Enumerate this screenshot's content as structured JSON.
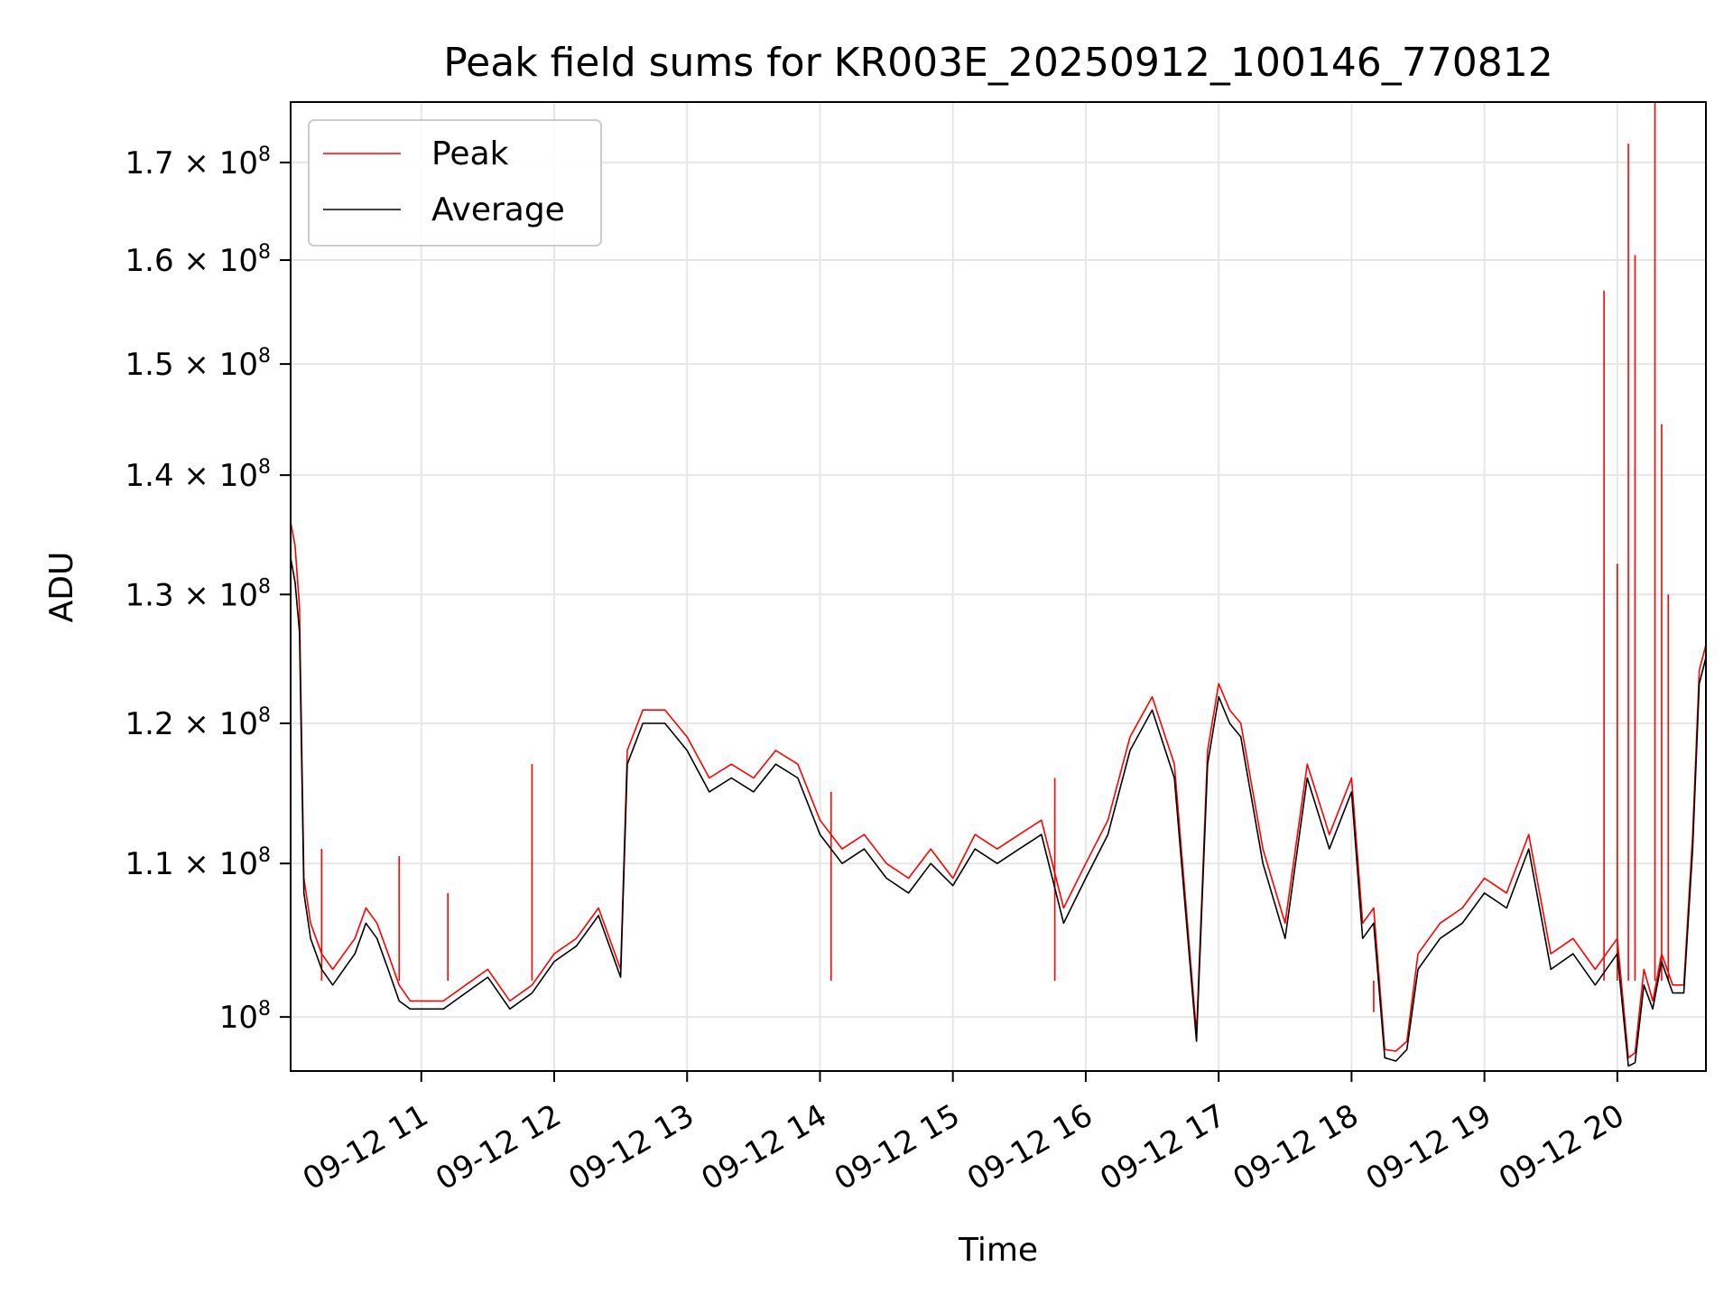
{
  "chart_data": {
    "type": "line",
    "title": "Peak field sums for KR003E_20250912_100146_770812",
    "xlabel": "Time",
    "ylabel": "ADU",
    "yscale": "log",
    "grid": true,
    "legend_position": "top-left",
    "xlim": [
      "2025-09-12 10:01",
      "2025-09-12 20:40"
    ],
    "ylim": [
      96700000,
      176500000
    ],
    "x_ticks": [
      {
        "value": "2025-09-12 11:00",
        "label": "09-12 11"
      },
      {
        "value": "2025-09-12 12:00",
        "label": "09-12 12"
      },
      {
        "value": "2025-09-12 13:00",
        "label": "09-12 13"
      },
      {
        "value": "2025-09-12 14:00",
        "label": "09-12 14"
      },
      {
        "value": "2025-09-12 15:00",
        "label": "09-12 15"
      },
      {
        "value": "2025-09-12 16:00",
        "label": "09-12 16"
      },
      {
        "value": "2025-09-12 17:00",
        "label": "09-12 17"
      },
      {
        "value": "2025-09-12 18:00",
        "label": "09-12 18"
      },
      {
        "value": "2025-09-12 19:00",
        "label": "09-12 19"
      },
      {
        "value": "2025-09-12 20:00",
        "label": "09-12 20"
      }
    ],
    "y_ticks": [
      {
        "value": 100000000,
        "mantissa": "",
        "exp": "8"
      },
      {
        "value": 110000000,
        "mantissa": "1.1",
        "exp": "8"
      },
      {
        "value": 120000000,
        "mantissa": "1.2",
        "exp": "8"
      },
      {
        "value": 130000000,
        "mantissa": "1.3",
        "exp": "8"
      },
      {
        "value": 140000000,
        "mantissa": "1.4",
        "exp": "8"
      },
      {
        "value": 150000000,
        "mantissa": "1.5",
        "exp": "8"
      },
      {
        "value": 160000000,
        "mantissa": "1.6",
        "exp": "8"
      },
      {
        "value": 170000000,
        "mantissa": "1.7",
        "exp": "8"
      }
    ],
    "series": [
      {
        "name": "Peak",
        "color": "#ff0000",
        "x": [
          "2025-09-12 10:01",
          "2025-09-12 10:03",
          "2025-09-12 10:05",
          "2025-09-12 10:07",
          "2025-09-12 10:10",
          "2025-09-12 10:15",
          "2025-09-12 10:20",
          "2025-09-12 10:25",
          "2025-09-12 10:30",
          "2025-09-12 10:35",
          "2025-09-12 10:40",
          "2025-09-12 10:45",
          "2025-09-12 10:50",
          "2025-09-12 10:55",
          "2025-09-12 11:00",
          "2025-09-12 11:10",
          "2025-09-12 11:20",
          "2025-09-12 11:30",
          "2025-09-12 11:40",
          "2025-09-12 11:50",
          "2025-09-12 12:00",
          "2025-09-12 12:10",
          "2025-09-12 12:20",
          "2025-09-12 12:30",
          "2025-09-12 12:33",
          "2025-09-12 12:40",
          "2025-09-12 12:50",
          "2025-09-12 13:00",
          "2025-09-12 13:10",
          "2025-09-12 13:20",
          "2025-09-12 13:30",
          "2025-09-12 13:40",
          "2025-09-12 13:50",
          "2025-09-12 14:00",
          "2025-09-12 14:10",
          "2025-09-12 14:20",
          "2025-09-12 14:30",
          "2025-09-12 14:40",
          "2025-09-12 14:50",
          "2025-09-12 15:00",
          "2025-09-12 15:10",
          "2025-09-12 15:20",
          "2025-09-12 15:30",
          "2025-09-12 15:40",
          "2025-09-12 15:50",
          "2025-09-12 16:00",
          "2025-09-12 16:10",
          "2025-09-12 16:20",
          "2025-09-12 16:30",
          "2025-09-12 16:40",
          "2025-09-12 16:50",
          "2025-09-12 16:55",
          "2025-09-12 17:00",
          "2025-09-12 17:05",
          "2025-09-12 17:10",
          "2025-09-12 17:20",
          "2025-09-12 17:30",
          "2025-09-12 17:40",
          "2025-09-12 17:50",
          "2025-09-12 18:00",
          "2025-09-12 18:05",
          "2025-09-12 18:10",
          "2025-09-12 18:15",
          "2025-09-12 18:20",
          "2025-09-12 18:25",
          "2025-09-12 18:30",
          "2025-09-12 18:40",
          "2025-09-12 18:50",
          "2025-09-12 19:00",
          "2025-09-12 19:10",
          "2025-09-12 19:20",
          "2025-09-12 19:30",
          "2025-09-12 19:40",
          "2025-09-12 19:50",
          "2025-09-12 19:55",
          "2025-09-12 20:00",
          "2025-09-12 20:05",
          "2025-09-12 20:08",
          "2025-09-12 20:12",
          "2025-09-12 20:16",
          "2025-09-12 20:20",
          "2025-09-12 20:25",
          "2025-09-12 20:30",
          "2025-09-12 20:34",
          "2025-09-12 20:37",
          "2025-09-12 20:40"
        ],
        "y": [
          136000000,
          134000000,
          129000000,
          109000000,
          106000000,
          104000000,
          103000000,
          104000000,
          105000000,
          107000000,
          106000000,
          104000000,
          102000000,
          101000000,
          101000000,
          101000000,
          102000000,
          103000000,
          101000000,
          102000000,
          104000000,
          105000000,
          107000000,
          103000000,
          118000000,
          121000000,
          121000000,
          119000000,
          116000000,
          117000000,
          116000000,
          118000000,
          117000000,
          113000000,
          111000000,
          112000000,
          110000000,
          109000000,
          111000000,
          109000000,
          112000000,
          111000000,
          112000000,
          113000000,
          107000000,
          110000000,
          113000000,
          119000000,
          122000000,
          117000000,
          99000000,
          118000000,
          123000000,
          121000000,
          120000000,
          111000000,
          106000000,
          117000000,
          112000000,
          116000000,
          106000000,
          107000000,
          98000000,
          97900000,
          98500000,
          104000000,
          106000000,
          107000000,
          109000000,
          108000000,
          112000000,
          104000000,
          105000000,
          103000000,
          104000000,
          105000000,
          97500000,
          97800000,
          103000000,
          101000000,
          104000000,
          102000000,
          102000000,
          112000000,
          124000000,
          126000000
        ],
        "spikes": [
          {
            "x": "2025-09-12 10:15",
            "y": 111000000
          },
          {
            "x": "2025-09-12 10:50",
            "y": 110500000
          },
          {
            "x": "2025-09-12 11:12",
            "y": 108000000
          },
          {
            "x": "2025-09-12 11:50",
            "y": 117000000
          },
          {
            "x": "2025-09-12 14:05",
            "y": 115000000
          },
          {
            "x": "2025-09-12 15:46",
            "y": 116000000
          },
          {
            "x": "2025-09-12 18:10",
            "y": 100300000
          },
          {
            "x": "2025-09-12 19:54",
            "y": 157000000
          },
          {
            "x": "2025-09-12 20:00",
            "y": 132500000
          },
          {
            "x": "2025-09-12 20:05",
            "y": 172000000
          },
          {
            "x": "2025-09-12 20:08",
            "y": 160500000
          },
          {
            "x": "2025-09-12 20:17",
            "y": 176500000
          },
          {
            "x": "2025-09-12 20:20",
            "y": 144500000
          },
          {
            "x": "2025-09-12 20:23",
            "y": 130000000
          }
        ]
      },
      {
        "name": "Average",
        "color": "#000000",
        "x": [
          "2025-09-12 10:01",
          "2025-09-12 10:03",
          "2025-09-12 10:05",
          "2025-09-12 10:07",
          "2025-09-12 10:10",
          "2025-09-12 10:15",
          "2025-09-12 10:20",
          "2025-09-12 10:25",
          "2025-09-12 10:30",
          "2025-09-12 10:35",
          "2025-09-12 10:40",
          "2025-09-12 10:45",
          "2025-09-12 10:50",
          "2025-09-12 10:55",
          "2025-09-12 11:00",
          "2025-09-12 11:10",
          "2025-09-12 11:20",
          "2025-09-12 11:30",
          "2025-09-12 11:40",
          "2025-09-12 11:50",
          "2025-09-12 12:00",
          "2025-09-12 12:10",
          "2025-09-12 12:20",
          "2025-09-12 12:30",
          "2025-09-12 12:33",
          "2025-09-12 12:40",
          "2025-09-12 12:50",
          "2025-09-12 13:00",
          "2025-09-12 13:10",
          "2025-09-12 13:20",
          "2025-09-12 13:30",
          "2025-09-12 13:40",
          "2025-09-12 13:50",
          "2025-09-12 14:00",
          "2025-09-12 14:10",
          "2025-09-12 14:20",
          "2025-09-12 14:30",
          "2025-09-12 14:40",
          "2025-09-12 14:50",
          "2025-09-12 15:00",
          "2025-09-12 15:10",
          "2025-09-12 15:20",
          "2025-09-12 15:30",
          "2025-09-12 15:40",
          "2025-09-12 15:50",
          "2025-09-12 16:00",
          "2025-09-12 16:10",
          "2025-09-12 16:20",
          "2025-09-12 16:30",
          "2025-09-12 16:40",
          "2025-09-12 16:50",
          "2025-09-12 16:55",
          "2025-09-12 17:00",
          "2025-09-12 17:05",
          "2025-09-12 17:10",
          "2025-09-12 17:20",
          "2025-09-12 17:30",
          "2025-09-12 17:40",
          "2025-09-12 17:50",
          "2025-09-12 18:00",
          "2025-09-12 18:05",
          "2025-09-12 18:10",
          "2025-09-12 18:15",
          "2025-09-12 18:20",
          "2025-09-12 18:25",
          "2025-09-12 18:30",
          "2025-09-12 18:40",
          "2025-09-12 18:50",
          "2025-09-12 19:00",
          "2025-09-12 19:10",
          "2025-09-12 19:20",
          "2025-09-12 19:30",
          "2025-09-12 19:40",
          "2025-09-12 19:50",
          "2025-09-12 19:55",
          "2025-09-12 20:00",
          "2025-09-12 20:05",
          "2025-09-12 20:08",
          "2025-09-12 20:12",
          "2025-09-12 20:16",
          "2025-09-12 20:20",
          "2025-09-12 20:25",
          "2025-09-12 20:30",
          "2025-09-12 20:34",
          "2025-09-12 20:37",
          "2025-09-12 20:40"
        ],
        "y": [
          133000000,
          131000000,
          127000000,
          108000000,
          105000000,
          103000000,
          102000000,
          103000000,
          104000000,
          106000000,
          105000000,
          103000000,
          101000000,
          100500000,
          100500000,
          100500000,
          101500000,
          102500000,
          100500000,
          101500000,
          103500000,
          104500000,
          106500000,
          102500000,
          117000000,
          120000000,
          120000000,
          118000000,
          115000000,
          116000000,
          115000000,
          117000000,
          116000000,
          112000000,
          110000000,
          111000000,
          109000000,
          108000000,
          110000000,
          108500000,
          111000000,
          110000000,
          111000000,
          112000000,
          106000000,
          109000000,
          112000000,
          118000000,
          121000000,
          116000000,
          98500000,
          117000000,
          122000000,
          120000000,
          119000000,
          110000000,
          105000000,
          116000000,
          111000000,
          115000000,
          105000000,
          106000000,
          97500000,
          97300000,
          98000000,
          103000000,
          105000000,
          106000000,
          108000000,
          107000000,
          111000000,
          103000000,
          104000000,
          102000000,
          103000000,
          104000000,
          97000000,
          97200000,
          102000000,
          100500000,
          103500000,
          101500000,
          101500000,
          111000000,
          123000000,
          125000000
        ]
      }
    ]
  }
}
